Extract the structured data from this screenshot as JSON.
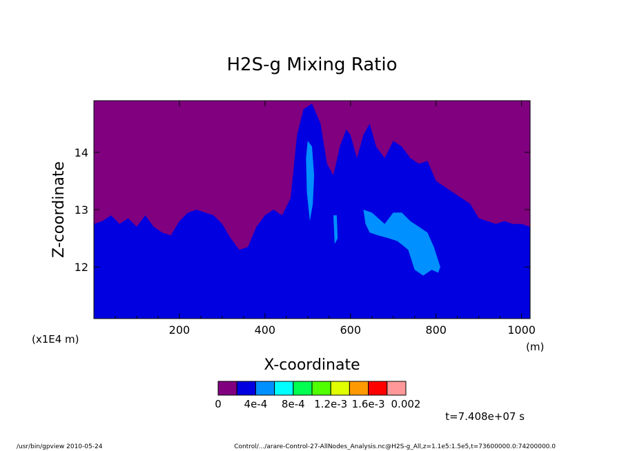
{
  "chart_data": {
    "type": "heatmap",
    "title": "H2S-g Mixing Ratio",
    "xlabel": "X-coordinate",
    "ylabel": "Z-coordinate",
    "x_unit": "(m)",
    "y_unit": "(x1E4 m)",
    "xlim": [
      0,
      1020
    ],
    "ylim": [
      11.1,
      14.9
    ],
    "xticks": [
      200,
      400,
      600,
      800,
      1000
    ],
    "yticks": [
      12,
      13,
      14
    ],
    "legend": {
      "colors": [
        "#800080",
        "#0000e0",
        "#0090ff",
        "#00ffff",
        "#00ff50",
        "#50ff00",
        "#e0ff00",
        "#ff9900",
        "#ff0000",
        "#ff9999"
      ],
      "labels": [
        "0",
        "4e-4",
        "8e-4",
        "1.2e-3",
        "1.6e-3",
        "0.002"
      ],
      "levels": [
        0,
        0.0002,
        0.0004,
        0.0006,
        0.0008,
        0.001,
        0.0012,
        0.0014,
        0.0016,
        0.0018,
        0.002
      ]
    },
    "interface_z": [
      [
        0,
        12.75
      ],
      [
        20,
        12.8
      ],
      [
        40,
        12.9
      ],
      [
        60,
        12.75
      ],
      [
        80,
        12.85
      ],
      [
        100,
        12.7
      ],
      [
        120,
        12.9
      ],
      [
        140,
        12.7
      ],
      [
        160,
        12.6
      ],
      [
        180,
        12.55
      ],
      [
        200,
        12.8
      ],
      [
        220,
        12.95
      ],
      [
        240,
        13.0
      ],
      [
        260,
        12.95
      ],
      [
        280,
        12.9
      ],
      [
        300,
        12.75
      ],
      [
        320,
        12.5
      ],
      [
        340,
        12.3
      ],
      [
        360,
        12.35
      ],
      [
        380,
        12.7
      ],
      [
        400,
        12.9
      ],
      [
        420,
        13.0
      ],
      [
        440,
        12.9
      ],
      [
        460,
        13.2
      ],
      [
        475,
        14.3
      ],
      [
        490,
        14.75
      ],
      [
        510,
        14.85
      ],
      [
        530,
        14.5
      ],
      [
        545,
        13.8
      ],
      [
        560,
        13.6
      ],
      [
        575,
        14.1
      ],
      [
        590,
        14.4
      ],
      [
        600,
        14.3
      ],
      [
        615,
        13.9
      ],
      [
        630,
        14.3
      ],
      [
        645,
        14.5
      ],
      [
        660,
        14.1
      ],
      [
        680,
        13.9
      ],
      [
        700,
        14.2
      ],
      [
        720,
        14.1
      ],
      [
        740,
        13.9
      ],
      [
        760,
        13.8
      ],
      [
        780,
        13.85
      ],
      [
        800,
        13.5
      ],
      [
        820,
        13.4
      ],
      [
        840,
        13.3
      ],
      [
        860,
        13.2
      ],
      [
        880,
        13.1
      ],
      [
        900,
        12.85
      ],
      [
        920,
        12.8
      ],
      [
        940,
        12.75
      ],
      [
        960,
        12.8
      ],
      [
        980,
        12.75
      ],
      [
        1000,
        12.75
      ],
      [
        1020,
        12.7
      ]
    ],
    "patches": [
      {
        "level": "8e-4",
        "points": [
          [
            500,
            14.2
          ],
          [
            510,
            14.1
          ],
          [
            515,
            13.6
          ],
          [
            512,
            13.1
          ],
          [
            505,
            12.8
          ],
          [
            498,
            13.3
          ],
          [
            496,
            13.9
          ]
        ]
      },
      {
        "level": "8e-4",
        "points": [
          [
            560,
            12.9
          ],
          [
            568,
            12.9
          ],
          [
            570,
            12.5
          ],
          [
            563,
            12.4
          ]
        ]
      },
      {
        "level": "8e-4",
        "points": [
          [
            630,
            13.0
          ],
          [
            650,
            12.95
          ],
          [
            680,
            12.75
          ],
          [
            700,
            12.95
          ],
          [
            720,
            12.95
          ],
          [
            740,
            12.8
          ],
          [
            760,
            12.7
          ],
          [
            780,
            12.6
          ],
          [
            795,
            12.35
          ],
          [
            810,
            12.0
          ],
          [
            805,
            11.9
          ],
          [
            790,
            11.95
          ],
          [
            770,
            11.85
          ],
          [
            750,
            11.95
          ],
          [
            735,
            12.3
          ],
          [
            710,
            12.45
          ],
          [
            690,
            12.5
          ],
          [
            665,
            12.55
          ],
          [
            645,
            12.6
          ],
          [
            635,
            12.75
          ]
        ]
      }
    ]
  },
  "footer": {
    "time_label": "t=7.408e+07 s",
    "left_text": "/usr/bin/gpview  2010-05-24",
    "right_text": "Control/.../arare-Control-27-AllNodes_Analysis.nc@H2S-g_All,z=1.1e5:1.5e5,t=73600000.0:74200000.0"
  }
}
